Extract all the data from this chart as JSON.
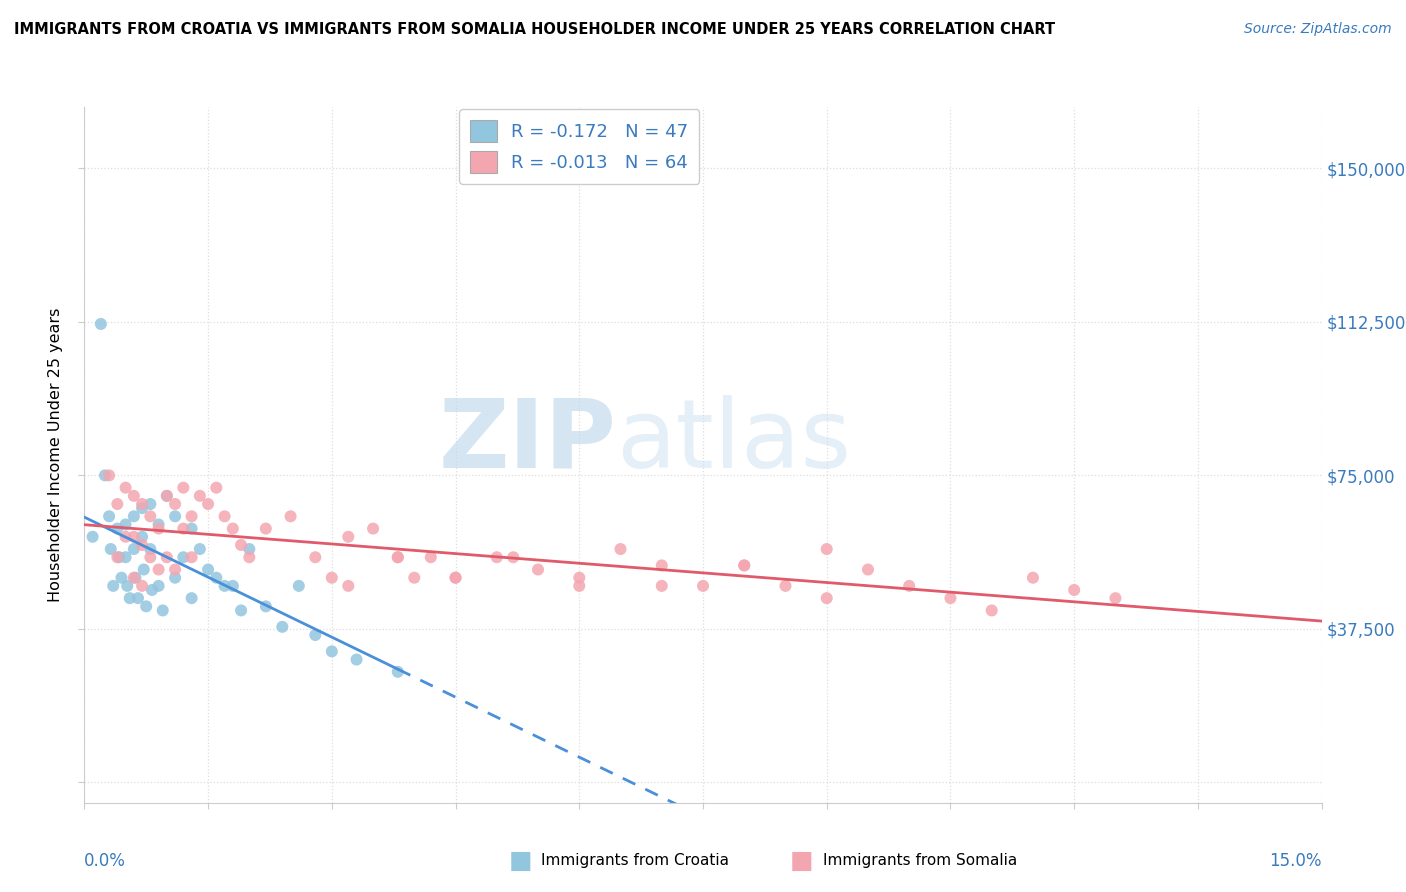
{
  "title": "IMMIGRANTS FROM CROATIA VS IMMIGRANTS FROM SOMALIA HOUSEHOLDER INCOME UNDER 25 YEARS CORRELATION CHART",
  "source": "Source: ZipAtlas.com",
  "ylabel": "Householder Income Under 25 years",
  "xlim": [
    0.0,
    0.15
  ],
  "ylim": [
    -5000,
    165000
  ],
  "yticks": [
    0,
    37500,
    75000,
    112500,
    150000
  ],
  "ytick_labels": [
    "",
    "$37,500",
    "$75,000",
    "$112,500",
    "$150,000"
  ],
  "croatia_color": "#92C5DE",
  "somalia_color": "#F4A6B0",
  "croatia_R": -0.172,
  "croatia_N": 47,
  "somalia_R": -0.013,
  "somalia_N": 64,
  "line_color_croatia": "#4a90d9",
  "line_color_somalia": "#e05a6a",
  "axis_label_color": "#3a7abf",
  "grid_color": "#dddddd",
  "croatia_scatter_x": [
    0.001,
    0.002,
    0.0025,
    0.003,
    0.0032,
    0.0035,
    0.004,
    0.0042,
    0.0045,
    0.005,
    0.005,
    0.0052,
    0.0055,
    0.006,
    0.006,
    0.0062,
    0.0065,
    0.007,
    0.007,
    0.0072,
    0.0075,
    0.008,
    0.008,
    0.0082,
    0.009,
    0.009,
    0.0095,
    0.01,
    0.011,
    0.011,
    0.012,
    0.013,
    0.013,
    0.014,
    0.015,
    0.016,
    0.017,
    0.018,
    0.019,
    0.02,
    0.022,
    0.024,
    0.026,
    0.028,
    0.03,
    0.033,
    0.038
  ],
  "croatia_scatter_y": [
    60000,
    112000,
    75000,
    65000,
    57000,
    48000,
    62000,
    55000,
    50000,
    63000,
    55000,
    48000,
    45000,
    65000,
    57000,
    50000,
    45000,
    67000,
    60000,
    52000,
    43000,
    68000,
    57000,
    47000,
    63000,
    48000,
    42000,
    70000,
    65000,
    50000,
    55000,
    62000,
    45000,
    57000,
    52000,
    50000,
    48000,
    48000,
    42000,
    57000,
    43000,
    38000,
    48000,
    36000,
    32000,
    30000,
    27000
  ],
  "somalia_scatter_x": [
    0.003,
    0.004,
    0.004,
    0.005,
    0.005,
    0.006,
    0.006,
    0.006,
    0.007,
    0.007,
    0.007,
    0.008,
    0.008,
    0.009,
    0.009,
    0.01,
    0.01,
    0.011,
    0.011,
    0.012,
    0.012,
    0.013,
    0.013,
    0.014,
    0.015,
    0.016,
    0.017,
    0.018,
    0.019,
    0.02,
    0.022,
    0.025,
    0.028,
    0.03,
    0.032,
    0.035,
    0.038,
    0.04,
    0.042,
    0.045,
    0.05,
    0.055,
    0.06,
    0.065,
    0.07,
    0.075,
    0.08,
    0.085,
    0.09,
    0.095,
    0.1,
    0.105,
    0.11,
    0.115,
    0.12,
    0.125,
    0.032,
    0.038,
    0.045,
    0.052,
    0.06,
    0.07,
    0.08,
    0.09
  ],
  "somalia_scatter_y": [
    75000,
    68000,
    55000,
    72000,
    60000,
    70000,
    60000,
    50000,
    68000,
    58000,
    48000,
    65000,
    55000,
    62000,
    52000,
    70000,
    55000,
    68000,
    52000,
    72000,
    62000,
    65000,
    55000,
    70000,
    68000,
    72000,
    65000,
    62000,
    58000,
    55000,
    62000,
    65000,
    55000,
    50000,
    60000,
    62000,
    55000,
    50000,
    55000,
    50000,
    55000,
    52000,
    48000,
    57000,
    53000,
    48000,
    53000,
    48000,
    45000,
    52000,
    48000,
    45000,
    42000,
    50000,
    47000,
    45000,
    48000,
    55000,
    50000,
    55000,
    50000,
    48000,
    53000,
    57000
  ]
}
